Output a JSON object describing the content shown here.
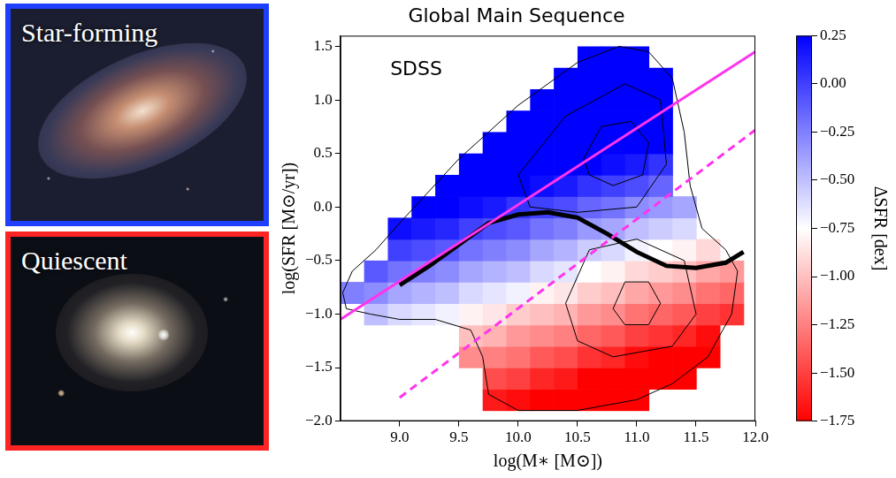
{
  "panels": [
    {
      "label": "Star-forming",
      "color": "#1f3fff"
    },
    {
      "label": "Quiescent",
      "color": "#ff2424"
    }
  ],
  "chart_data": {
    "type": "hexbin",
    "title": "Global Main Sequence",
    "x_label": "log(M∗ [M⊙])",
    "y_label": "log(SFR [M⊙/yr])",
    "xlim": [
      8.5,
      12.0
    ],
    "xticks": [
      {
        "value": 9,
        "label": "9.0"
      },
      9.5,
      {
        "value": 10,
        "label": "10.0"
      },
      10.5,
      {
        "value": 11,
        "label": "11.0"
      },
      11.5,
      {
        "value": 12,
        "label": "12.0"
      }
    ],
    "ylim": [
      -2.0,
      1.6
    ],
    "yticks": [
      {
        "value": -2,
        "label": "−2.0"
      },
      {
        "value": -1.5,
        "label": "−1.5"
      },
      {
        "value": -1,
        "label": "−1.0"
      },
      {
        "value": -0.5,
        "label": "−0.5"
      },
      {
        "value": 0,
        "label": "0.0"
      },
      0.5,
      {
        "value": 1,
        "label": "1.0"
      },
      1.5
    ],
    "grid": false,
    "annotations": [
      {
        "text": "SDSS",
        "x": 8.92,
        "y": 1.28
      }
    ],
    "hexbin": {
      "x": [
        8.6,
        8.8,
        9.0,
        9.2,
        9.4,
        9.6,
        9.8,
        10.0,
        10.2,
        10.4,
        10.6,
        10.8,
        11.0,
        11.2,
        11.4,
        11.6,
        11.8
      ],
      "y": [
        -1.8,
        -1.6,
        -1.4,
        -1.2,
        -1.0,
        -0.8,
        -0.6,
        -0.4,
        -0.2,
        0.0,
        0.2,
        0.4,
        0.6,
        0.8,
        1.0,
        1.2,
        1.4
      ],
      "dsfr": [
        [
          null,
          null,
          null,
          null,
          null,
          null,
          -1.65,
          -1.7,
          -1.75,
          -1.75,
          -1.75,
          -1.75,
          -1.75,
          null,
          null,
          null,
          null
        ],
        [
          null,
          null,
          null,
          null,
          null,
          null,
          -1.45,
          -1.5,
          -1.6,
          -1.65,
          -1.75,
          -1.75,
          -1.75,
          -1.75,
          -1.75,
          null,
          null
        ],
        [
          null,
          null,
          null,
          null,
          null,
          -1.2,
          -1.25,
          -1.3,
          -1.4,
          -1.45,
          -1.55,
          -1.6,
          -1.7,
          -1.75,
          -1.75,
          -1.75,
          null
        ],
        [
          null,
          null,
          null,
          null,
          null,
          -1.0,
          -1.05,
          -1.15,
          -1.2,
          -1.25,
          -1.35,
          -1.4,
          -1.5,
          -1.55,
          -1.6,
          -1.7,
          null
        ],
        [
          null,
          -0.5,
          -0.6,
          -0.65,
          -0.7,
          -0.8,
          -0.85,
          -0.95,
          -1.0,
          -1.05,
          -1.15,
          -1.2,
          -1.3,
          -1.35,
          -1.4,
          -1.5,
          -1.55
        ],
        [
          -0.25,
          -0.3,
          -0.4,
          -0.45,
          -0.5,
          -0.6,
          -0.65,
          -0.7,
          -0.8,
          -0.85,
          -0.95,
          -1.0,
          -1.1,
          -1.15,
          -1.2,
          -1.3,
          -1.35
        ],
        [
          null,
          -0.1,
          -0.2,
          -0.25,
          -0.3,
          -0.4,
          -0.45,
          -0.5,
          -0.6,
          -0.65,
          -0.75,
          -0.8,
          -0.9,
          -0.95,
          -1.0,
          -1.1,
          -1.15
        ],
        [
          null,
          null,
          0,
          -0.05,
          -0.1,
          -0.2,
          -0.25,
          -0.3,
          -0.4,
          -0.45,
          -0.55,
          -0.6,
          -0.7,
          -0.75,
          -0.8,
          -0.9,
          null
        ],
        [
          null,
          null,
          0.2,
          0.15,
          0.1,
          0,
          -0.05,
          -0.1,
          -0.2,
          -0.25,
          -0.35,
          -0.4,
          -0.5,
          -0.55,
          -0.6,
          null,
          null
        ],
        [
          null,
          null,
          null,
          0.25,
          0.25,
          0.2,
          0.15,
          0.05,
          0,
          -0.05,
          -0.15,
          -0.2,
          -0.3,
          -0.35,
          -0.4,
          null,
          null
        ],
        [
          null,
          null,
          null,
          null,
          0.25,
          0.25,
          0.25,
          0.25,
          0.2,
          0.15,
          0.05,
          0,
          -0.05,
          -0.15,
          null,
          null,
          null
        ],
        [
          null,
          null,
          null,
          null,
          null,
          0.25,
          0.25,
          0.25,
          0.25,
          0.25,
          0.25,
          0.2,
          0.15,
          0.05,
          null,
          null,
          null
        ],
        [
          null,
          null,
          null,
          null,
          null,
          null,
          0.25,
          0.25,
          0.25,
          0.25,
          0.25,
          0.25,
          0.25,
          0.25,
          null,
          null,
          null
        ],
        [
          null,
          null,
          null,
          null,
          null,
          null,
          null,
          0.25,
          0.25,
          0.25,
          0.25,
          0.25,
          0.25,
          0.25,
          null,
          null,
          null
        ],
        [
          null,
          null,
          null,
          null,
          null,
          null,
          null,
          null,
          0.25,
          0.25,
          0.25,
          0.25,
          0.25,
          0.25,
          null,
          null,
          null
        ],
        [
          null,
          null,
          null,
          null,
          null,
          null,
          null,
          null,
          null,
          0.25,
          0.25,
          0.25,
          0.25,
          0.25,
          null,
          null,
          null
        ],
        [
          null,
          null,
          null,
          null,
          null,
          null,
          null,
          null,
          null,
          null,
          0.25,
          0.25,
          0.25,
          null,
          null,
          null,
          null
        ]
      ]
    },
    "colorbar": {
      "label": "ΔSFR [dex]",
      "range": [
        -1.75,
        0.25
      ],
      "ticks": [
        0.25,
        {
          "value": 0,
          "label": "0.00"
        },
        {
          "value": -0.25,
          "label": "−0.25"
        },
        {
          "value": -0.5,
          "label": "−0.50"
        },
        {
          "value": -0.75,
          "label": "−0.75"
        },
        {
          "value": -1,
          "label": "−1.00"
        },
        {
          "value": -1.25,
          "label": "−1.25"
        },
        {
          "value": -1.5,
          "label": "−1.50"
        },
        {
          "value": -1.75,
          "label": "−1.75"
        }
      ]
    },
    "series": [
      {
        "type": "line",
        "color": "#ff33ee",
        "line_style": "solid",
        "x": [
          8.5,
          12.0
        ],
        "values": [
          -1.05,
          1.45
        ]
      },
      {
        "type": "line",
        "color": "#ff33ee",
        "line_style": "dashed",
        "x": [
          9.0,
          12.0
        ],
        "values": [
          -1.78,
          0.72
        ]
      },
      {
        "type": "line",
        "color": "#000000",
        "line_style": "solid",
        "x": [
          9.0,
          9.25,
          9.5,
          9.75,
          10.0,
          10.25,
          10.5,
          10.75,
          11.0,
          11.25,
          11.5,
          11.75,
          11.9
        ],
        "values": [
          -0.73,
          -0.55,
          -0.35,
          -0.15,
          -0.07,
          -0.05,
          -0.1,
          -0.25,
          -0.42,
          -0.55,
          -0.57,
          -0.52,
          -0.42
        ]
      },
      {
        "type": "contour",
        "color": "#000000",
        "line_style": "solid",
        "x": [
          8.55,
          8.52,
          8.6,
          8.8,
          9.0,
          9.5,
          10.0,
          10.5,
          10.85,
          11.1,
          11.3,
          11.4,
          11.45,
          11.55,
          11.75,
          11.85,
          11.8,
          11.6,
          11.3,
          11.0,
          10.5,
          10.0,
          9.75,
          9.7,
          9.6,
          9.3,
          9.0,
          8.75,
          8.55
        ],
        "values": [
          -0.95,
          -0.8,
          -0.6,
          -0.4,
          -0.15,
          0.45,
          0.95,
          1.35,
          1.5,
          1.45,
          1.2,
          0.7,
          0.2,
          -0.2,
          -0.4,
          -0.6,
          -1.0,
          -1.4,
          -1.65,
          -1.8,
          -1.9,
          -1.9,
          -1.75,
          -1.4,
          -1.15,
          -1.05,
          -1.05,
          -1.0,
          -0.95
        ]
      },
      {
        "type": "contour",
        "color": "#000000",
        "line_style": "solid",
        "x": [
          10.0,
          10.4,
          10.9,
          11.2,
          11.25,
          11.0,
          10.5,
          10.1,
          10.0
        ],
        "values": [
          0.3,
          0.85,
          1.15,
          1.0,
          0.4,
          0.0,
          -0.05,
          0.0,
          0.3
        ]
      },
      {
        "type": "contour",
        "color": "#000000",
        "line_style": "solid",
        "x": [
          10.55,
          10.7,
          10.95,
          11.1,
          11.05,
          10.8,
          10.6,
          10.55
        ],
        "values": [
          0.45,
          0.75,
          0.8,
          0.6,
          0.3,
          0.2,
          0.3,
          0.45
        ]
      },
      {
        "type": "contour",
        "color": "#000000",
        "line_style": "solid",
        "x": [
          10.4,
          10.6,
          11.0,
          11.4,
          11.5,
          11.3,
          10.8,
          10.5,
          10.4
        ],
        "values": [
          -0.9,
          -0.4,
          -0.3,
          -0.5,
          -1.0,
          -1.3,
          -1.4,
          -1.25,
          -0.9
        ]
      },
      {
        "type": "contour",
        "color": "#000000",
        "line_style": "solid",
        "x": [
          10.8,
          10.9,
          11.1,
          11.2,
          11.1,
          10.9,
          10.8
        ],
        "values": [
          -0.95,
          -0.7,
          -0.7,
          -0.9,
          -1.1,
          -1.1,
          -0.95
        ]
      }
    ]
  }
}
